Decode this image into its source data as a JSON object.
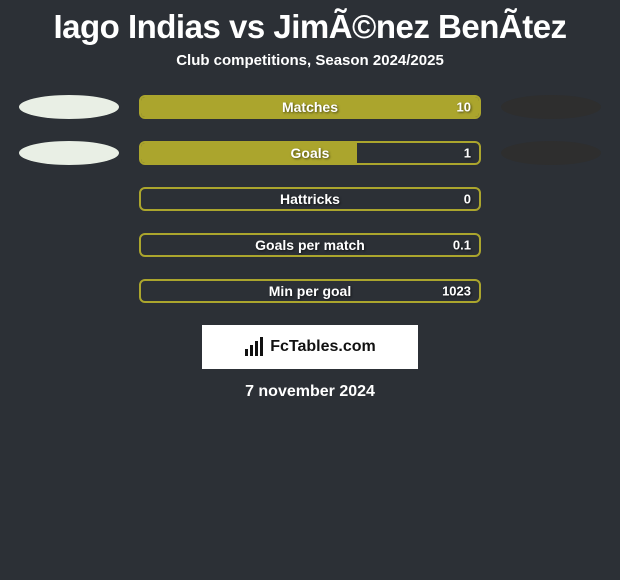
{
  "title": "Iago Indias vs JimÃ©nez BenÃ­tez",
  "subtitle": "Club competitions, Season 2024/2025",
  "colors": {
    "left_ellipse": "#e9efe5",
    "right_ellipse": "#2e2e2e",
    "bar_border": "#aba52d",
    "bar_fill": "#aba52d",
    "background": "#2c3036"
  },
  "rows": [
    {
      "label": "Matches",
      "value": "10",
      "fill_pct": 100,
      "show_ellipses": true
    },
    {
      "label": "Goals",
      "value": "1",
      "fill_pct": 64,
      "show_ellipses": true
    },
    {
      "label": "Hattricks",
      "value": "0",
      "fill_pct": 0,
      "show_ellipses": false
    },
    {
      "label": "Goals per match",
      "value": "0.1",
      "fill_pct": 0,
      "show_ellipses": false
    },
    {
      "label": "Min per goal",
      "value": "1023",
      "fill_pct": 0,
      "show_ellipses": false
    }
  ],
  "brand": {
    "text": "FcTables.com"
  },
  "date": "7 november 2024"
}
